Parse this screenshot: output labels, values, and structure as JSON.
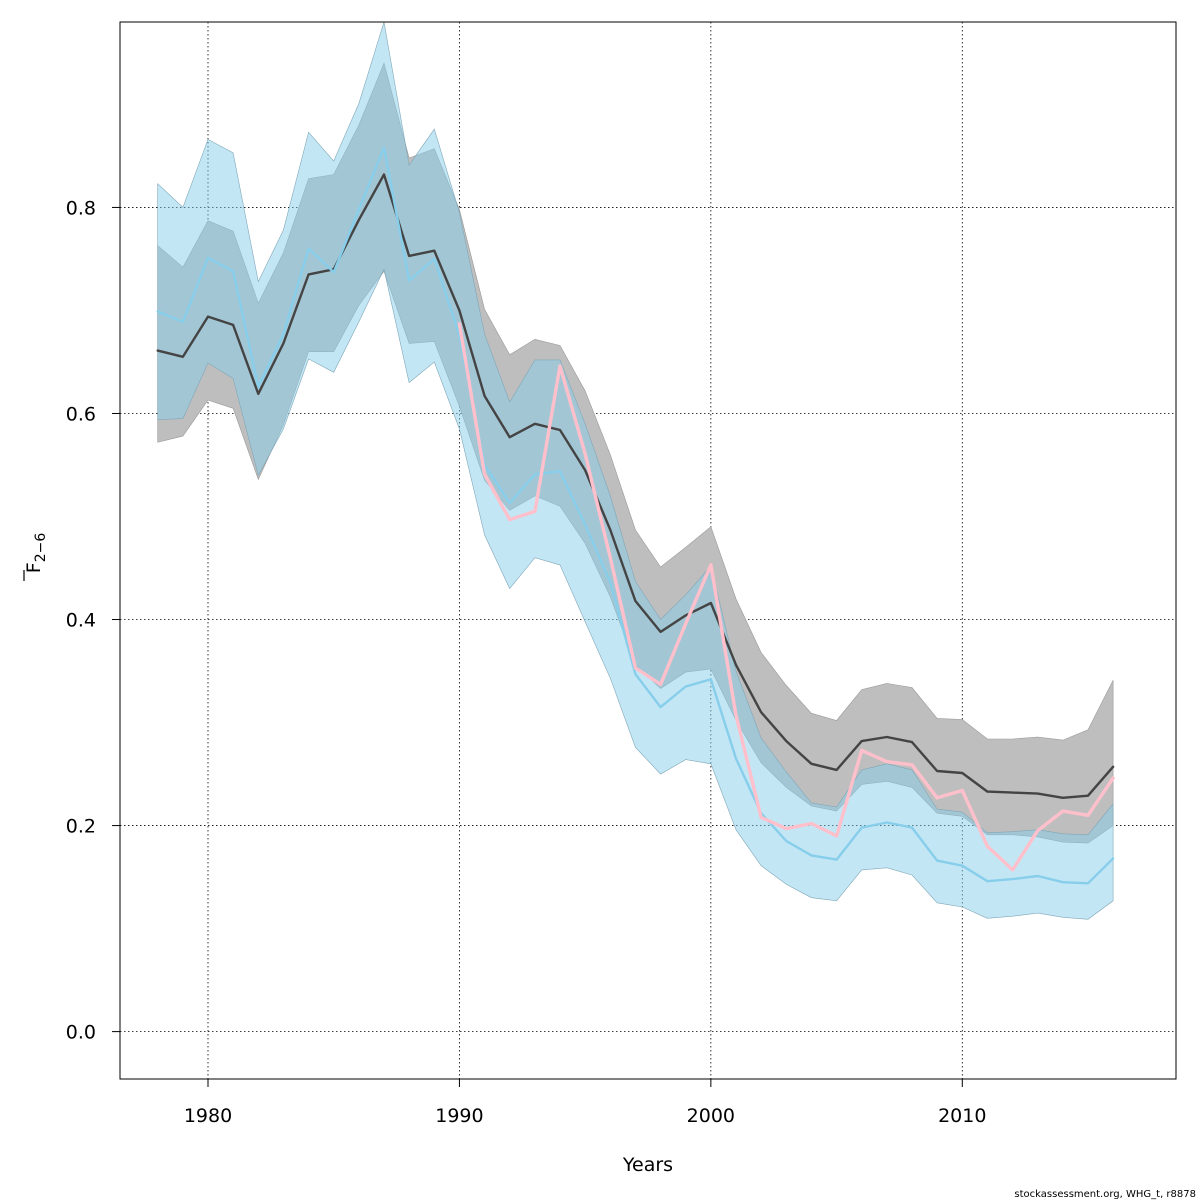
{
  "chart_data": {
    "type": "line",
    "title": "",
    "xlabel": "Years",
    "ylabel": "F̅ 2−6",
    "ylabel_base": "F",
    "ylabel_sub": "2−6",
    "xlim": [
      1976.5,
      2018.5
    ],
    "ylim": [
      -0.046,
      0.98
    ],
    "x_ticks": [
      1980,
      1990,
      2000,
      2010
    ],
    "y_ticks": [
      0.0,
      0.2,
      0.4,
      0.6,
      0.8
    ],
    "x_tick_labels": [
      "1980",
      "1990",
      "2000",
      "2010"
    ],
    "y_tick_labels": [
      "0.0",
      "0.2",
      "0.4",
      "0.6",
      "0.8"
    ],
    "grid": true,
    "footer": "stockassessment.org, WHG_t, r8878",
    "colors": {
      "black_band": "#bebebe",
      "black_line": "#444444",
      "blue_band": "#87ceeb",
      "blue_line": "#87ceeb",
      "pink_line": "#ffc0cb"
    },
    "series": [
      {
        "role": "black",
        "x": [
          1978,
          1979,
          1980,
          1981,
          1982,
          1983,
          1984,
          1985,
          1986,
          1987,
          1988,
          1989,
          1990,
          1991,
          1992,
          1993,
          1994,
          1995,
          1996,
          1997,
          1998,
          1999,
          2000,
          2001,
          2002,
          2003,
          2004,
          2005,
          2006,
          2007,
          2008,
          2009,
          2010,
          2011,
          2012,
          2013,
          2014,
          2015,
          2016
        ],
        "values": [
          0.661,
          0.655,
          0.694,
          0.686,
          0.619,
          0.668,
          0.735,
          0.74,
          0.788,
          0.832,
          0.753,
          0.758,
          0.7,
          0.617,
          0.577,
          0.59,
          0.584,
          0.545,
          0.487,
          0.418,
          0.388,
          0.404,
          0.416,
          0.356,
          0.31,
          0.282,
          0.26,
          0.254,
          0.282,
          0.286,
          0.281,
          0.253,
          0.251,
          0.233,
          0.232,
          0.231,
          0.227,
          0.229,
          0.257
        ],
        "lower": [
          0.572,
          0.578,
          0.613,
          0.605,
          0.536,
          0.589,
          0.66,
          0.66,
          0.705,
          0.738,
          0.668,
          0.67,
          0.607,
          0.535,
          0.506,
          0.52,
          0.51,
          0.474,
          0.422,
          0.356,
          0.333,
          0.349,
          0.352,
          0.302,
          0.261,
          0.237,
          0.219,
          0.214,
          0.24,
          0.243,
          0.237,
          0.212,
          0.209,
          0.191,
          0.191,
          0.189,
          0.184,
          0.183,
          0.2
        ],
        "upper": [
          0.763,
          0.742,
          0.787,
          0.777,
          0.707,
          0.756,
          0.828,
          0.832,
          0.88,
          0.94,
          0.848,
          0.857,
          0.798,
          0.701,
          0.657,
          0.672,
          0.666,
          0.622,
          0.56,
          0.487,
          0.451,
          0.47,
          0.49,
          0.42,
          0.368,
          0.336,
          0.309,
          0.302,
          0.332,
          0.338,
          0.334,
          0.304,
          0.303,
          0.284,
          0.284,
          0.286,
          0.283,
          0.293,
          0.341
        ]
      },
      {
        "role": "blue",
        "x": [
          1978,
          1979,
          1980,
          1981,
          1982,
          1983,
          1984,
          1985,
          1986,
          1987,
          1988,
          1989,
          1990,
          1991,
          1992,
          1993,
          1994,
          1995,
          1996,
          1997,
          1998,
          1999,
          2000,
          2001,
          2002,
          2003,
          2004,
          2005,
          2006,
          2007,
          2008,
          2009,
          2010,
          2011,
          2012,
          2013,
          2014,
          2015,
          2016
        ],
        "values": [
          0.699,
          0.689,
          0.751,
          0.738,
          0.626,
          0.677,
          0.76,
          0.737,
          0.798,
          0.858,
          0.729,
          0.75,
          0.676,
          0.55,
          0.513,
          0.541,
          0.544,
          0.492,
          0.436,
          0.347,
          0.315,
          0.335,
          0.342,
          0.265,
          0.212,
          0.185,
          0.171,
          0.167,
          0.198,
          0.203,
          0.198,
          0.166,
          0.161,
          0.146,
          0.148,
          0.151,
          0.145,
          0.144,
          0.168
        ],
        "lower": [
          0.594,
          0.595,
          0.649,
          0.634,
          0.54,
          0.585,
          0.653,
          0.64,
          0.689,
          0.74,
          0.63,
          0.65,
          0.585,
          0.482,
          0.43,
          0.46,
          0.453,
          0.398,
          0.343,
          0.276,
          0.25,
          0.264,
          0.26,
          0.196,
          0.161,
          0.143,
          0.13,
          0.127,
          0.157,
          0.159,
          0.152,
          0.125,
          0.121,
          0.11,
          0.112,
          0.115,
          0.111,
          0.109,
          0.127
        ],
        "upper": [
          0.823,
          0.8,
          0.866,
          0.853,
          0.728,
          0.778,
          0.873,
          0.845,
          0.901,
          0.99,
          0.841,
          0.876,
          0.795,
          0.677,
          0.611,
          0.652,
          0.652,
          0.59,
          0.52,
          0.437,
          0.4,
          0.424,
          0.452,
          0.35,
          0.285,
          0.252,
          0.222,
          0.218,
          0.254,
          0.26,
          0.254,
          0.216,
          0.213,
          0.193,
          0.194,
          0.196,
          0.192,
          0.191,
          0.221
        ]
      },
      {
        "role": "pink",
        "x": [
          1990,
          1991,
          1992,
          1993,
          1994,
          1995,
          1996,
          1997,
          1998,
          1999,
          2000,
          2001,
          2002,
          2003,
          2004,
          2005,
          2006,
          2007,
          2008,
          2009,
          2010,
          2011,
          2012,
          2013,
          2014,
          2015,
          2016
        ],
        "values": [
          0.687,
          0.541,
          0.497,
          0.505,
          0.646,
          0.561,
          0.46,
          0.353,
          0.337,
          0.396,
          0.453,
          0.307,
          0.208,
          0.197,
          0.202,
          0.19,
          0.273,
          0.262,
          0.259,
          0.227,
          0.234,
          0.18,
          0.157,
          0.195,
          0.214,
          0.21,
          0.246
        ]
      }
    ]
  }
}
